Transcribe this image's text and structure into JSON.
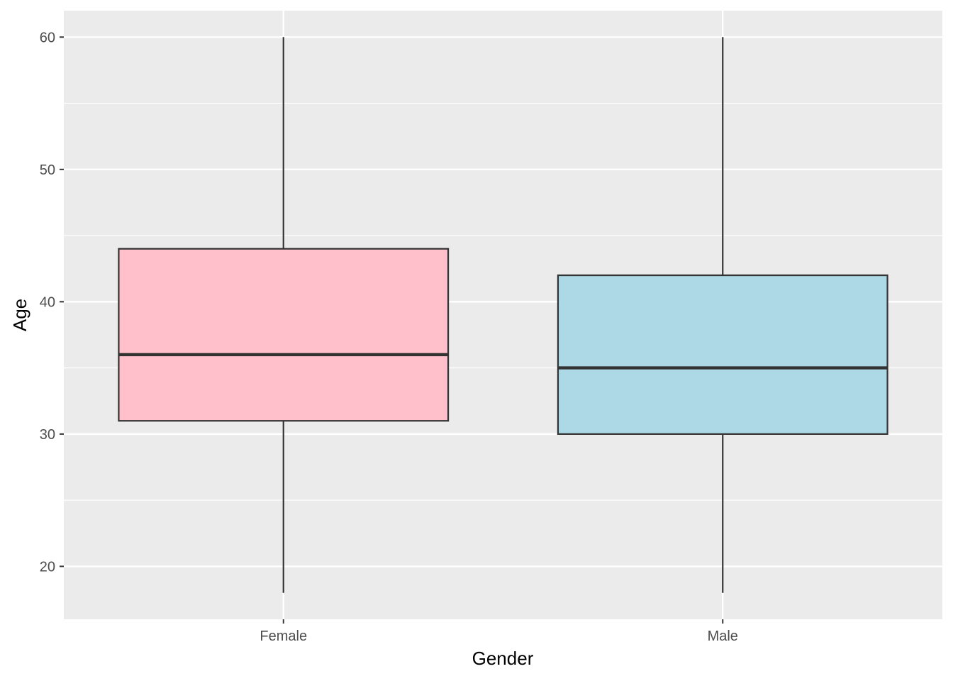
{
  "chart_data": {
    "type": "boxplot",
    "xlabel": "Gender",
    "ylabel": "Age",
    "ylim": [
      16,
      62
    ],
    "yticks": [
      20,
      30,
      40,
      50,
      60
    ],
    "yminor": [
      25,
      35,
      45,
      55
    ],
    "grid": true,
    "panel_color": "#ebebeb",
    "grid_color": "#ffffff",
    "outline_color": "#333333",
    "categories": [
      "Female",
      "Male"
    ],
    "boxes": [
      {
        "category": "Female",
        "min": 18,
        "q1": 31,
        "median": 36,
        "q3": 44,
        "max": 60,
        "fill": "#ffc0cb"
      },
      {
        "category": "Male",
        "min": 18,
        "q1": 30,
        "median": 35,
        "q3": 42,
        "max": 60,
        "fill": "#add8e6"
      }
    ]
  }
}
